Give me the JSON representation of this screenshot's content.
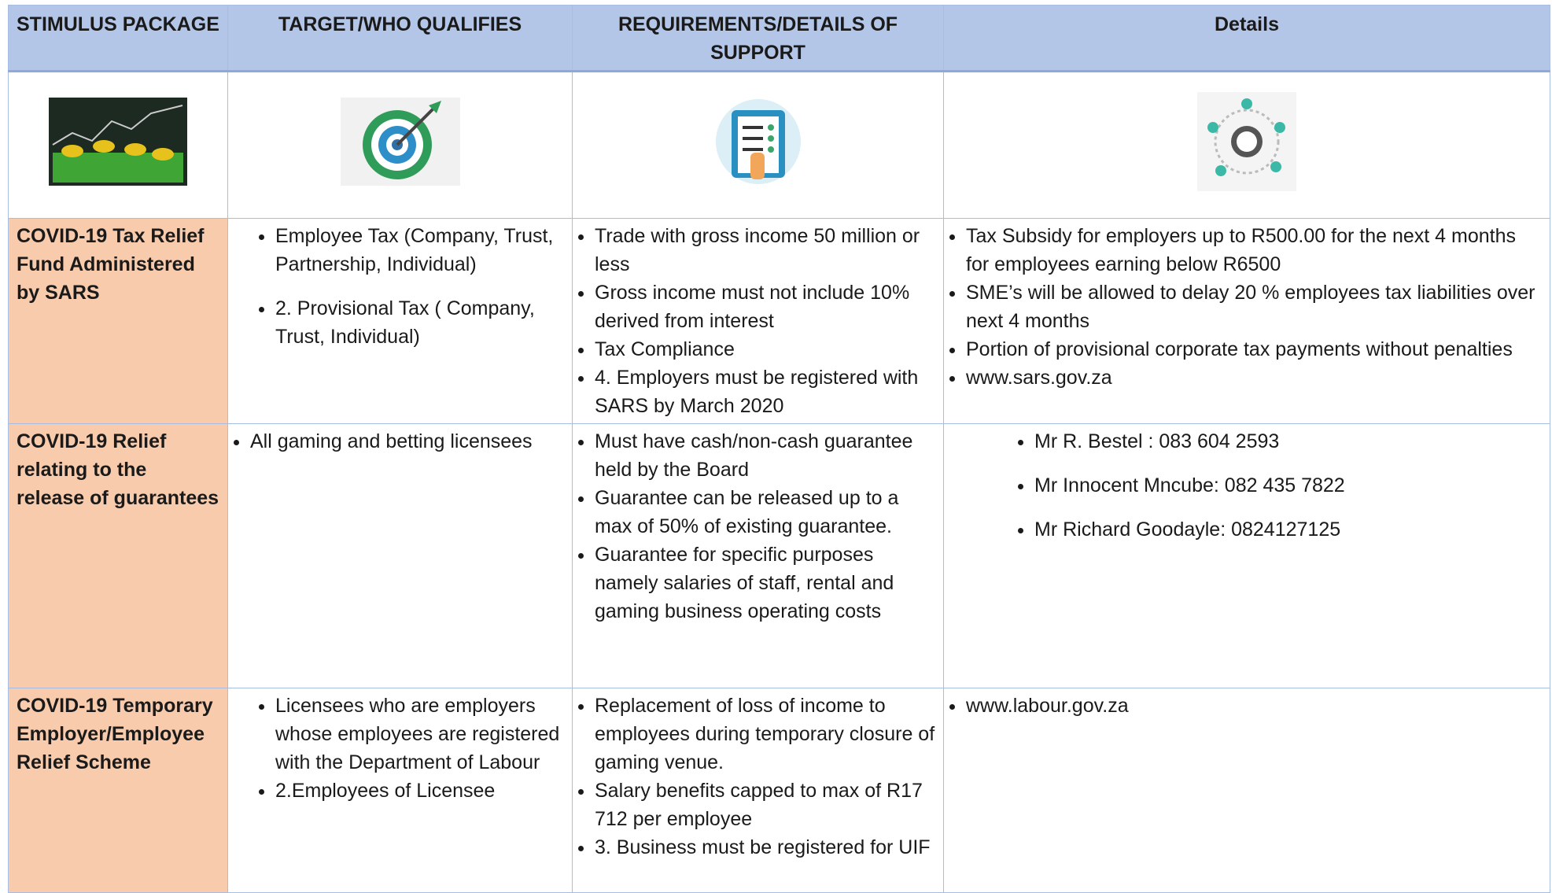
{
  "header": {
    "columns": [
      "STIMULUS PACKAGE",
      "TARGET/WHO QUALIFIES",
      "REQUIREMENTS/DETAILS OF SUPPORT",
      "Details"
    ]
  },
  "table": {
    "rows": [
      {
        "package": "COVID-19  Tax Relief Fund Administered by  SARS",
        "target": [
          "Employee Tax (Company, Trust, Partnership, Individual)",
          "2. Provisional Tax ( Company, Trust, Individual)"
        ],
        "requirements": [
          "Trade with gross income 50 million or less",
          "Gross income must not include 10%  derived from interest",
          "Tax Compliance",
          "4. Employers must be registered with SARS by March 2020"
        ],
        "details": [
          "Tax Subsidy for employers up to R500.00 for the next 4 months for employees earning below R6500",
          "SME’s will be allowed to delay 20 % employees tax liabilities over next 4 months",
          "Portion of provisional corporate tax payments without penalties",
          "www.sars.gov.za"
        ]
      },
      {
        "package": "COVID-19 Relief relating to the release of guarantees",
        "target": [
          "All gaming and betting licensees"
        ],
        "requirements": [
          "Must have cash/non-cash guarantee  held by the Board",
          "Guarantee can be released up  to a max of 50% of existing guarantee.",
          "Guarantee for specific purposes namely salaries of staff, rental and gaming business operating costs"
        ],
        "details": [
          "Mr R. Bestel :  083 604 2593",
          "Mr Innocent Mncube:  082 435 7822",
          "Mr Richard Goodayle: 0824127125"
        ]
      },
      {
        "package": "COVID-19 Temporary Employer/Employee Relief Scheme",
        "target": [
          "Licensees who are employers  whose employees are registered with the Department of Labour",
          "2.Employees of Licensee"
        ],
        "requirements": [
          "Replacement of loss of income to employees during temporary closure of gaming venue.",
          "Salary benefits capped to max of R17 712 per employee",
          "3. Business must be registered for UIF"
        ],
        "details": [
          "www.labour.gov.za"
        ]
      }
    ]
  }
}
